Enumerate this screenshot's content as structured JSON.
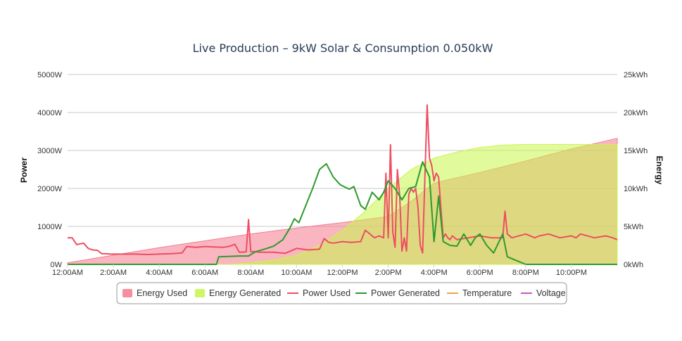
{
  "chart_data": {
    "type": "area",
    "title": "Live Production – 9kW Solar & Consumption 0.050kW",
    "ylabel": "Power",
    "y2label": "Energy",
    "ylim": [
      0,
      5000
    ],
    "y2lim": [
      0,
      25
    ],
    "y_ticks": [
      "0W",
      "1000W",
      "2000W",
      "3000W",
      "4000W",
      "5000W"
    ],
    "y2_ticks": [
      "0kWh",
      "5kWh",
      "10kWh",
      "15kWh",
      "20kWh",
      "25kWh"
    ],
    "x_range_hours": [
      0,
      24
    ],
    "x_ticks": [
      "12:00AM",
      "2:00AM",
      "4:00AM",
      "6:00AM",
      "8:00AM",
      "10:00AM",
      "12:00PM",
      "2:00PM",
      "4:00PM",
      "6:00PM",
      "8:00PM",
      "10:00PM"
    ],
    "grid": true,
    "legend_position": "bottom",
    "series": [
      {
        "name": "Energy Used",
        "kind": "area",
        "axis": "energy",
        "color": "#f47a8e",
        "x_hours": [
          0,
          2,
          4,
          6,
          8,
          10,
          12,
          13,
          14,
          15,
          16,
          18,
          20,
          22,
          24
        ],
        "values": [
          0.2,
          1.2,
          2.2,
          3.1,
          4.0,
          4.8,
          5.5,
          5.9,
          6.3,
          8.3,
          10.7,
          12.1,
          13.6,
          15.2,
          16.6
        ]
      },
      {
        "name": "Energy Generated",
        "kind": "area",
        "axis": "energy",
        "color": "#c9f54a",
        "x_hours": [
          0,
          7,
          8,
          9,
          10,
          11,
          12,
          13,
          14,
          15,
          16,
          17,
          18,
          19,
          20,
          22,
          24
        ],
        "values": [
          0,
          0,
          0.2,
          0.6,
          1.2,
          2.5,
          4.5,
          7.0,
          10.0,
          12.5,
          14.0,
          14.8,
          15.4,
          15.7,
          15.8,
          15.8,
          15.8
        ]
      },
      {
        "name": "Power Used",
        "kind": "line",
        "axis": "power",
        "color": "#ee4d63",
        "x_hours": [
          0,
          0.2,
          0.4,
          0.7,
          0.9,
          1.1,
          1.3,
          1.5,
          1.7,
          1.9,
          2.2,
          2.6,
          3.0,
          3.5,
          4.0,
          4.5,
          4.8,
          5.0,
          5.2,
          5.6,
          6.0,
          6.4,
          6.8,
          7.1,
          7.3,
          7.5,
          7.8,
          7.9,
          8.0,
          8.1,
          8.4,
          9.0,
          9.5,
          10.0,
          10.5,
          11.0,
          11.2,
          11.4,
          11.6,
          12.0,
          12.4,
          12.8,
          13.0,
          13.4,
          13.6,
          13.8,
          13.9,
          14.0,
          14.1,
          14.2,
          14.3,
          14.4,
          14.5,
          14.6,
          14.7,
          14.8,
          14.9,
          15.0,
          15.1,
          15.2,
          15.3,
          15.4,
          15.5,
          15.7,
          15.8,
          15.9,
          16.0,
          16.1,
          16.2,
          16.3,
          16.4,
          16.5,
          16.6,
          16.7,
          16.8,
          17.0,
          17.5,
          18.0,
          18.5,
          19.0,
          19.1,
          19.2,
          19.4,
          20.0,
          20.4,
          20.6,
          21.0,
          21.5,
          22.0,
          22.2,
          22.4,
          23.0,
          23.5,
          23.8,
          24.0
        ],
        "values": [
          700,
          700,
          520,
          560,
          420,
          380,
          370,
          280,
          280,
          270,
          270,
          270,
          270,
          260,
          270,
          280,
          290,
          300,
          470,
          450,
          470,
          460,
          450,
          480,
          530,
          320,
          330,
          1180,
          330,
          340,
          320,
          320,
          290,
          420,
          380,
          400,
          680,
          580,
          560,
          600,
          580,
          600,
          900,
          700,
          750,
          700,
          2400,
          700,
          3150,
          850,
          450,
          2500,
          1800,
          350,
          700,
          350,
          1850,
          2000,
          1900,
          2000,
          1500,
          500,
          300,
          4200,
          2800,
          2600,
          2200,
          2400,
          2300,
          1500,
          700,
          800,
          700,
          650,
          750,
          650,
          700,
          750,
          700,
          700,
          1400,
          800,
          700,
          800,
          700,
          750,
          800,
          700,
          750,
          700,
          800,
          700,
          750,
          700,
          650
        ]
      },
      {
        "name": "Power Generated",
        "kind": "line",
        "axis": "power",
        "color": "#2d9a2d",
        "x_hours": [
          0,
          6.5,
          6.6,
          7.5,
          7.9,
          8.2,
          8.7,
          9.0,
          9.4,
          9.7,
          9.9,
          10.1,
          10.3,
          10.7,
          11.0,
          11.3,
          11.6,
          11.9,
          12.3,
          12.5,
          12.8,
          13.0,
          13.3,
          13.6,
          13.8,
          14.0,
          14.3,
          14.6,
          14.9,
          15.2,
          15.5,
          15.8,
          16.0,
          16.2,
          16.4,
          16.7,
          17.0,
          17.3,
          17.6,
          17.8,
          18.0,
          18.3,
          18.6,
          19.0,
          19.2,
          19.6,
          20.0,
          22.0,
          24.0
        ],
        "values": [
          0,
          0,
          200,
          220,
          220,
          330,
          420,
          480,
          650,
          950,
          1200,
          1100,
          1400,
          2000,
          2500,
          2650,
          2300,
          2100,
          1980,
          2050,
          1550,
          1450,
          1900,
          1700,
          1900,
          2200,
          2000,
          1700,
          2000,
          2050,
          2700,
          2300,
          600,
          1800,
          600,
          500,
          480,
          800,
          500,
          700,
          800,
          500,
          300,
          800,
          200,
          100,
          0,
          0,
          0
        ]
      },
      {
        "name": "Temperature",
        "kind": "line",
        "axis": "power",
        "color": "#f0a14a",
        "x_hours": [],
        "values": []
      },
      {
        "name": "Voltage",
        "kind": "line",
        "axis": "power",
        "color": "#c65bc2",
        "x_hours": [],
        "values": []
      }
    ]
  }
}
